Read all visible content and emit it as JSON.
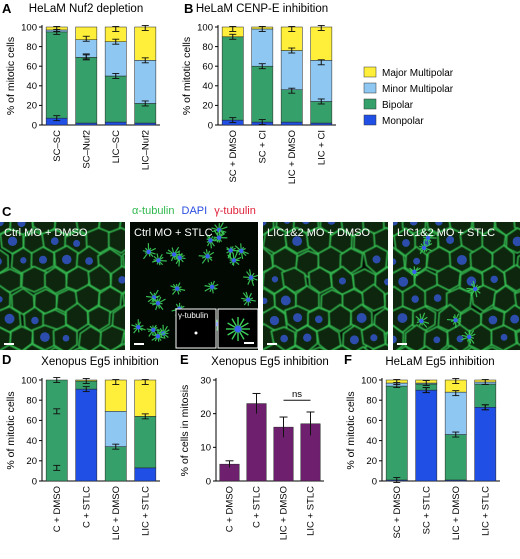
{
  "colors": {
    "major_multipolar": "#ffef3a",
    "minor_multipolar": "#8ec7f1",
    "bipolar": "#35a06a",
    "monopolar": "#1f4fe4",
    "bar_purple": "#6e1f6e",
    "stain_green": "#3cd05a",
    "stain_blue": "#3a5ef0",
    "stain_red": "#e6213b"
  },
  "panels": {
    "A": "A",
    "B": "B",
    "C": "C",
    "D": "D",
    "E": "E",
    "F": "F"
  },
  "legend": {
    "items": [
      {
        "label": "Major Multipolar",
        "color": "#ffef3a"
      },
      {
        "label": "Minor Multipolar",
        "color": "#8ec7f1"
      },
      {
        "label": "Bipolar",
        "color": "#35a06a"
      },
      {
        "label": "Monpolar",
        "color": "#1f4fe4"
      }
    ]
  },
  "micro": {
    "stain": {
      "a": "α-tubulin",
      "b": "DAPI",
      "c": "γ-tubulin"
    },
    "titles": [
      "Ctrl MO + DMSO",
      "Ctrl MO + STLC",
      "LIC1&2 MO + DMSO",
      "LIC1&2 MO + STLC"
    ],
    "inset_label": "γ-tubulin"
  },
  "chart_data": [
    {
      "id": "A",
      "type": "bar",
      "stacked": true,
      "title": "HeLaM Nuf2 depletion",
      "ylabel": "% of mitotic cells",
      "ylim": [
        0,
        100
      ],
      "yticks": [
        0,
        20,
        40,
        60,
        80,
        100
      ],
      "categories": [
        "SC–SC",
        "SC–Nuf2",
        "LIC–SC",
        "LIC–Nuf2"
      ],
      "series": [
        {
          "name": "Monpolar",
          "color": "#1f4fe4",
          "values": [
            7,
            2,
            3,
            2
          ]
        },
        {
          "name": "Bipolar",
          "color": "#35a06a",
          "values": [
            88,
            67,
            47,
            20
          ]
        },
        {
          "name": "Minor Multipolar",
          "color": "#8ec7f1",
          "values": [
            2,
            18,
            35,
            44
          ]
        },
        {
          "name": "Major Multipolar",
          "color": "#ffef3a",
          "values": [
            3,
            13,
            15,
            34
          ]
        }
      ],
      "errors": [
        [
          98,
          88,
          98,
          99
        ],
        [
          95,
          69,
          85,
          66
        ],
        [
          7,
          70,
          50,
          22
        ]
      ]
    },
    {
      "id": "B",
      "type": "bar",
      "stacked": true,
      "title": "HeLaM CENP-E inhibition",
      "ylabel": "% of mitotic cells",
      "ylim": [
        0,
        100
      ],
      "yticks": [
        0,
        20,
        40,
        60,
        80,
        100
      ],
      "categories": [
        "SC + DMSO",
        "SC + CI",
        "LIC + DMSO",
        "LIC + CI"
      ],
      "series": [
        {
          "name": "Monpolar",
          "color": "#1f4fe4",
          "values": [
            5,
            3,
            3,
            2
          ]
        },
        {
          "name": "Bipolar",
          "color": "#35a06a",
          "values": [
            85,
            57,
            33,
            22
          ]
        },
        {
          "name": "Minor Multipolar",
          "color": "#8ec7f1",
          "values": [
            0,
            38,
            40,
            42
          ]
        },
        {
          "name": "Major Multipolar",
          "color": "#ffef3a",
          "values": [
            10,
            2,
            24,
            34
          ]
        }
      ],
      "errors": [
        [
          98,
          98,
          98,
          99
        ],
        [
          90,
          60,
          76,
          64
        ],
        [
          5,
          3,
          35,
          24
        ]
      ]
    },
    {
      "id": "D",
      "type": "bar",
      "stacked": true,
      "title": "Xenopus Eg5 inhibition",
      "ylabel": "% of mitotic cells",
      "ylim": [
        0,
        100
      ],
      "yticks": [
        0,
        20,
        40,
        60,
        80,
        100
      ],
      "categories": [
        "C + DMSO",
        "C + STLC",
        "LIC + DMSO",
        "LIC + STLC"
      ],
      "series": [
        {
          "name": "Monpolar",
          "color": "#1f4fe4",
          "values": [
            0,
            91,
            0,
            13
          ]
        },
        {
          "name": "Bipolar",
          "color": "#35a06a",
          "values": [
            100,
            8,
            34,
            51
          ]
        },
        {
          "name": "Minor Multipolar",
          "color": "#8ec7f1",
          "values": [
            0,
            0,
            35,
            0
          ]
        },
        {
          "name": "Major Multipolar",
          "color": "#ffef3a",
          "values": [
            0,
            1,
            31,
            36
          ]
        }
      ],
      "errors": [
        [
          100,
          99,
          98,
          98
        ],
        [
          69,
          91,
          34,
          64
        ],
        [
          13
        ]
      ]
    },
    {
      "id": "E",
      "type": "bar",
      "stacked": false,
      "title": "Xenopus Eg5 inhibition",
      "ylabel": "% of cells in mitosis",
      "ylim": [
        0,
        30
      ],
      "yticks": [
        0,
        10,
        20,
        30
      ],
      "categories": [
        "C + DMSO",
        "C + STLC",
        "LIC + DMSO",
        "LIC + STLC"
      ],
      "values": [
        5,
        23,
        16,
        17
      ],
      "errors": [
        1,
        3,
        3,
        3.5
      ],
      "annotation": "ns"
    },
    {
      "id": "F",
      "type": "bar",
      "stacked": true,
      "title": "HeLaM Eg5 inhibition",
      "ylabel": "% of mitotic cells",
      "ylim": [
        0,
        100
      ],
      "yticks": [
        0,
        20,
        40,
        60,
        80,
        100
      ],
      "categories": [
        "SC + DMSO",
        "SC + STLC",
        "LIC + DMSO",
        "LIC + STLC"
      ],
      "series": [
        {
          "name": "Monpolar",
          "color": "#1f4fe4",
          "values": [
            1,
            90,
            1,
            73
          ]
        },
        {
          "name": "Bipolar",
          "color": "#35a06a",
          "values": [
            93,
            6,
            45,
            23
          ]
        },
        {
          "name": "Minor Multipolar",
          "color": "#8ec7f1",
          "values": [
            3,
            1,
            42,
            2
          ]
        },
        {
          "name": "Major Multipolar",
          "color": "#ffef3a",
          "values": [
            3,
            3,
            12,
            2
          ]
        }
      ],
      "errors": [
        [
          98,
          97,
          99,
          98
        ],
        [
          95,
          90,
          87,
          73
        ],
        [
          1,
          90,
          46,
          73
        ]
      ]
    }
  ]
}
